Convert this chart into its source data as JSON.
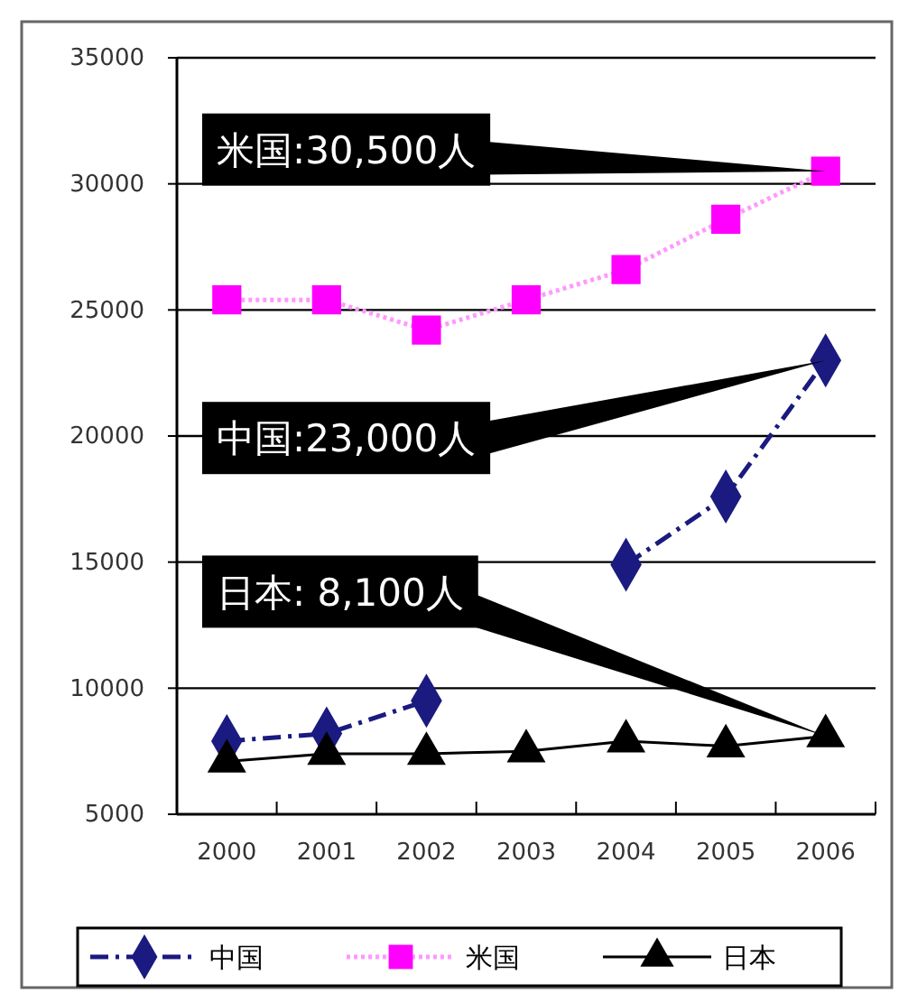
{
  "chart_data": {
    "type": "line",
    "categories": [
      "2000",
      "2001",
      "2002",
      "2003",
      "2004",
      "2005",
      "2006"
    ],
    "series": [
      {
        "name": "中国",
        "color": "#1a1a80",
        "values": [
          7900,
          8200,
          9500,
          null,
          14900,
          17600,
          23000
        ],
        "marker": "diamond",
        "line_style": "dashed"
      },
      {
        "name": "米国",
        "color": "#ff00ff",
        "values": [
          25400,
          25400,
          24200,
          25400,
          26600,
          28600,
          30500
        ],
        "marker": "square",
        "line_style": "dotted"
      },
      {
        "name": "日本",
        "color": "#000000",
        "values": [
          7100,
          7400,
          7400,
          7500,
          7900,
          7700,
          8100
        ],
        "marker": "triangle",
        "line_style": "solid"
      }
    ],
    "ylim": [
      5000,
      35000
    ],
    "yticks": [
      5000,
      10000,
      15000,
      20000,
      25000,
      30000,
      35000
    ],
    "grid": "y",
    "legend": "bottom",
    "annotations": [
      {
        "text": "米国:30,500人",
        "x": "2006",
        "y": 30500
      },
      {
        "text": "中国:23,000人",
        "x": "2006",
        "y": 23000
      },
      {
        "text": "日本: 8,100人",
        "x": "2006",
        "y": 8100
      }
    ]
  }
}
